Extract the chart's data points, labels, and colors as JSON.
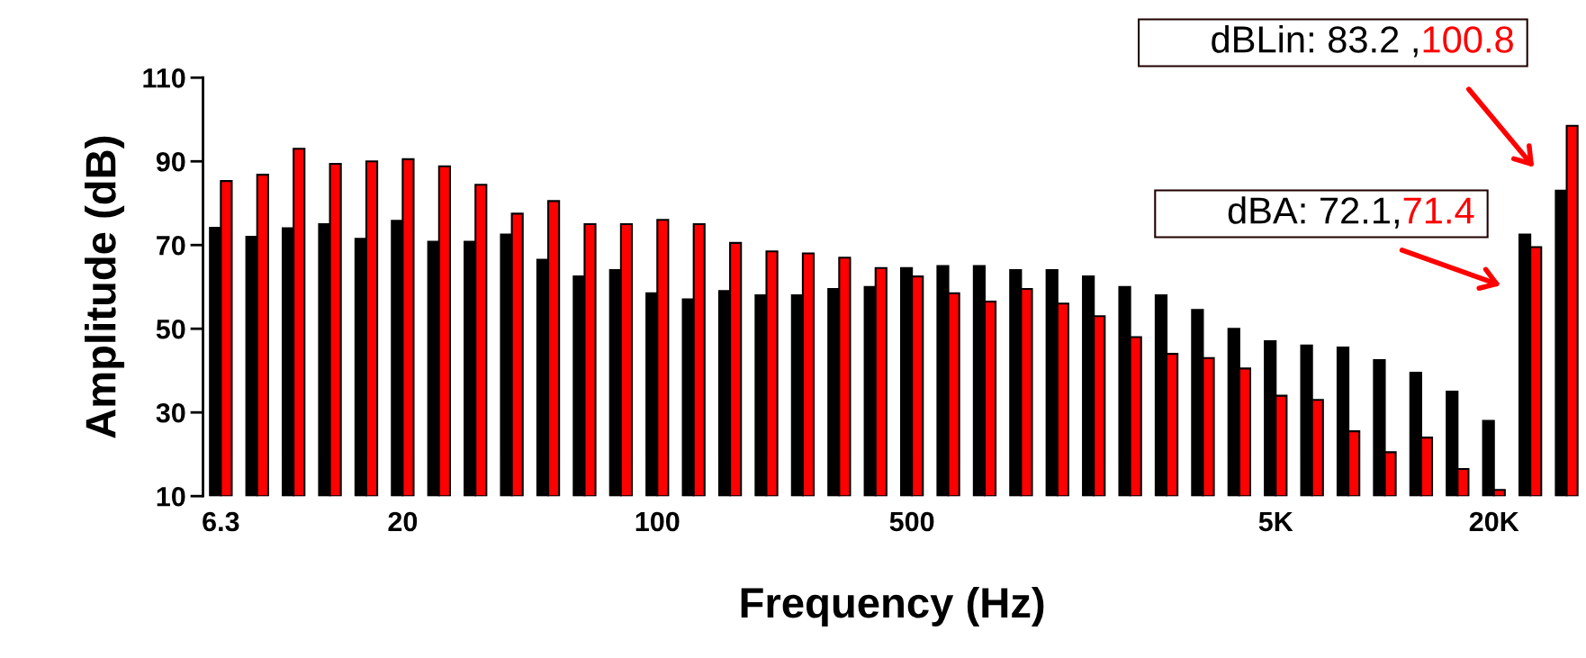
{
  "chart_data": {
    "type": "bar",
    "xlabel": "Frequency (Hz)",
    "ylabel": "Amplitude (dB)",
    "categories": [
      "6.3",
      null,
      null,
      null,
      null,
      "20",
      null,
      null,
      null,
      null,
      null,
      null,
      "100",
      null,
      null,
      null,
      null,
      null,
      null,
      "500",
      null,
      null,
      null,
      null,
      null,
      null,
      null,
      null,
      null,
      "5K",
      null,
      null,
      null,
      null,
      null,
      "20K",
      null,
      null
    ],
    "series": [
      {
        "color": "#000000",
        "values": [
          74.1,
          72,
          74,
          75,
          71.5,
          75.8,
          70.8,
          70.8,
          72.5,
          66.5,
          62.5,
          64,
          58.5,
          57,
          59,
          58,
          58,
          59.5,
          60,
          64.5,
          65,
          65,
          64,
          64,
          62.5,
          60,
          58,
          54.5,
          50,
          47,
          46,
          45.5,
          42.5,
          39.5,
          35,
          28,
          72.5,
          83
        ]
      },
      {
        "color": "#ff0000",
        "values": [
          85.3,
          86.8,
          93,
          89.4,
          90,
          90.5,
          88.8,
          84.4,
          77.5,
          80.5,
          75,
          75,
          76,
          75,
          70.5,
          68.5,
          68,
          67,
          64.5,
          62.5,
          58.5,
          56.5,
          59.5,
          56,
          53,
          48,
          44,
          43,
          40.5,
          34,
          33,
          25.5,
          20.5,
          24,
          16.5,
          11.5,
          69.5,
          98.5
        ]
      }
    ],
    "ylim": [
      10,
      110
    ],
    "yticks": [
      10,
      30,
      50,
      70,
      90,
      110
    ],
    "annotations": [
      "dBLin: 83.2 ,100.8",
      "dBA: 72.1,71.4"
    ]
  }
}
